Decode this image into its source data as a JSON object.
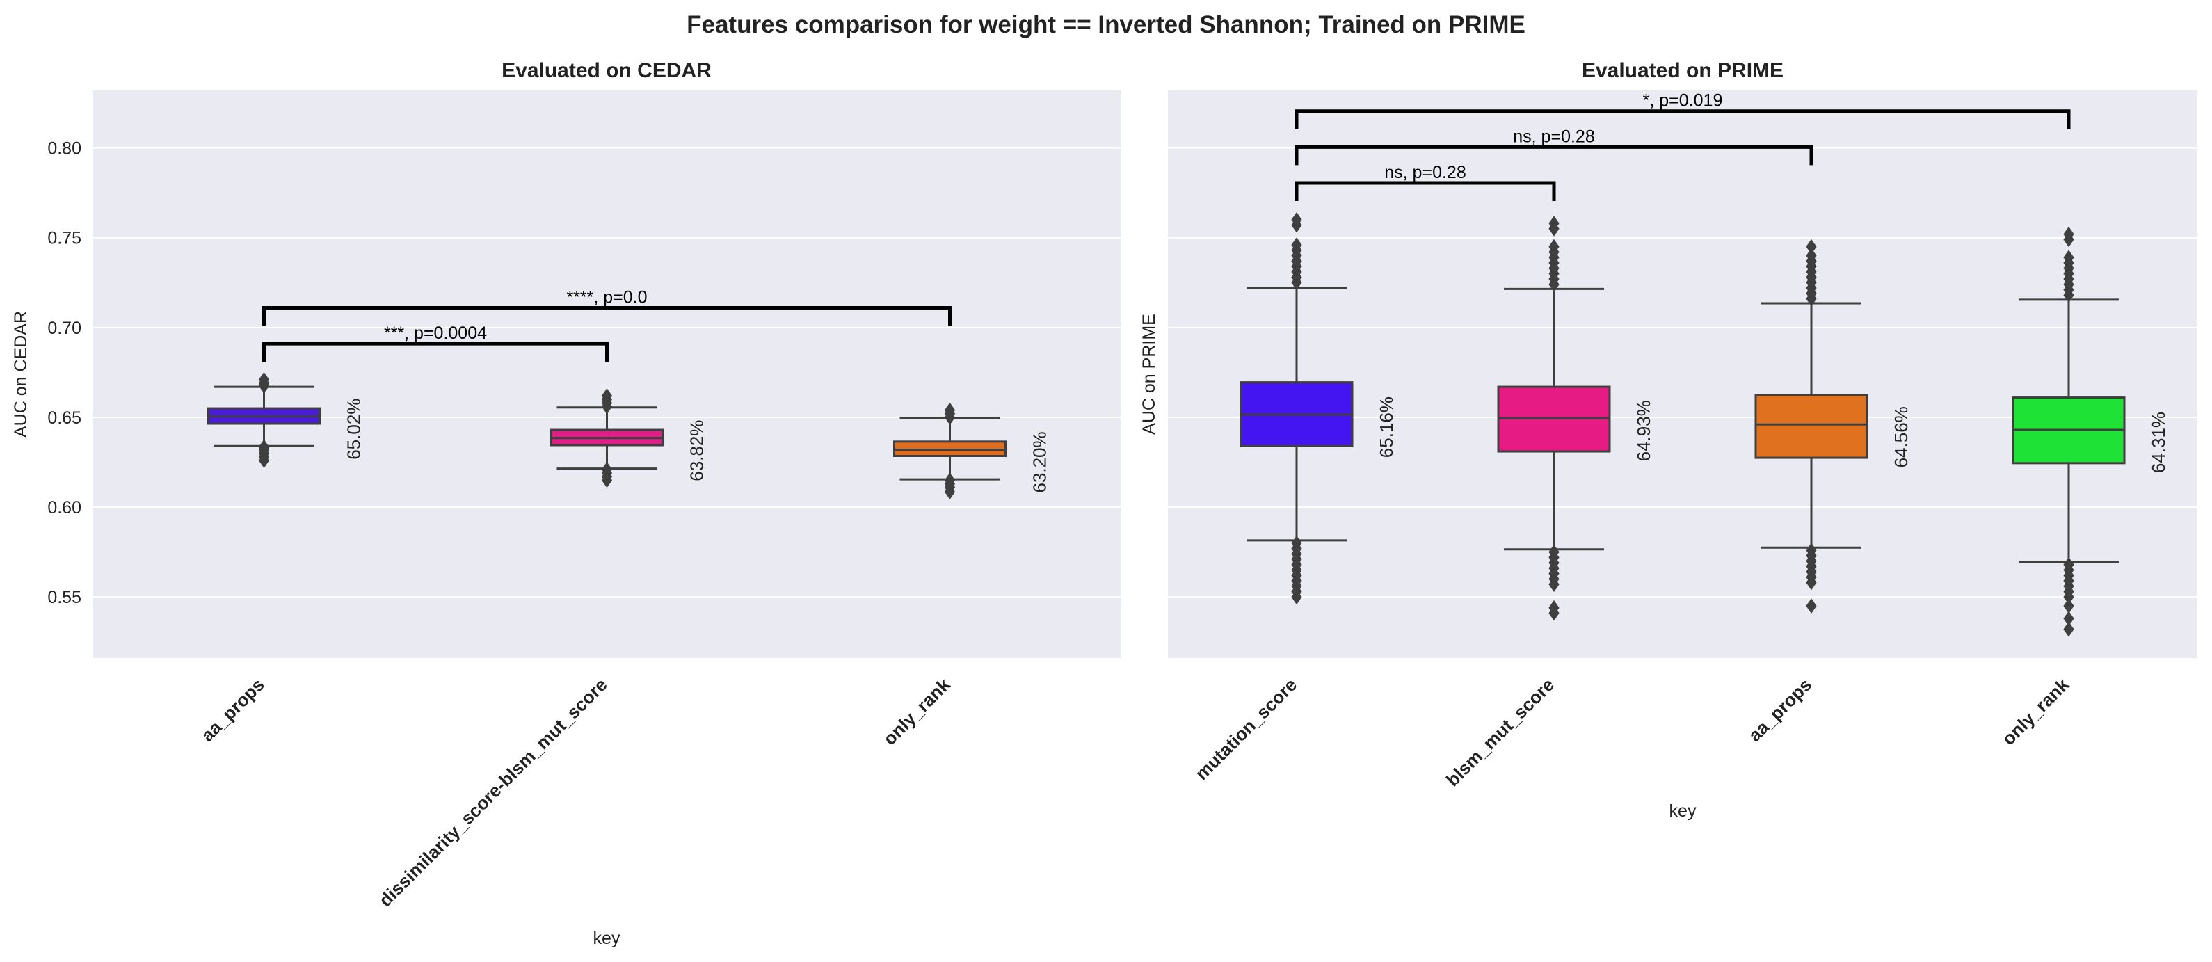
{
  "figure_title": "Features comparison for weight == Inverted Shannon; Trained on PRIME",
  "colors": {
    "panel_bg": "#EAEAF2",
    "grid": "#FFFFFF",
    "box_edge": "#3F3F3F",
    "bracket": "#000000"
  },
  "chart_data": [
    {
      "type": "box",
      "title": "Evaluated on CEDAR",
      "xlabel": "key",
      "ylabel": "AUC on CEDAR",
      "ylim": [
        0.516,
        0.832
      ],
      "yticks": [
        "0.55",
        "0.60",
        "0.65",
        "0.70",
        "0.75",
        "0.80"
      ],
      "grid": true,
      "categories": [
        "aa_props",
        "dissimilarity_score-blsm_mut_score",
        "only_rank"
      ],
      "colors": [
        "#4B1CD6",
        "#DD1F86",
        "#DF6D1E"
      ],
      "boxes": [
        {
          "q1": 0.6465,
          "median": 0.6505,
          "q3": 0.655,
          "whislo": 0.634,
          "whishi": 0.667,
          "fliers_low": [
            0.6335,
            0.632,
            0.63,
            0.628,
            0.626
          ],
          "fliers_high": [
            0.6675,
            0.669,
            0.671
          ],
          "mean_label": "65.02%"
        },
        {
          "q1": 0.6345,
          "median": 0.6385,
          "q3": 0.643,
          "whislo": 0.6215,
          "whishi": 0.6555,
          "fliers_low": [
            0.621,
            0.619,
            0.617,
            0.615
          ],
          "fliers_high": [
            0.656,
            0.658,
            0.66,
            0.662
          ],
          "mean_label": "63.82%"
        },
        {
          "q1": 0.6285,
          "median": 0.632,
          "q3": 0.6365,
          "whislo": 0.6155,
          "whishi": 0.6495,
          "fliers_low": [
            0.615,
            0.613,
            0.611,
            0.6085
          ],
          "fliers_high": [
            0.65,
            0.652,
            0.654
          ],
          "mean_label": "63.20%"
        }
      ],
      "annotations": [
        {
          "from": 0,
          "to": 1,
          "y": 0.691,
          "label": "***, p=0.0004"
        },
        {
          "from": 0,
          "to": 2,
          "y": 0.711,
          "label": "****, p=0.0"
        }
      ]
    },
    {
      "type": "box",
      "title": "Evaluated on PRIME",
      "xlabel": "key",
      "ylabel": "AUC on PRIME",
      "ylim": [
        0.516,
        0.832
      ],
      "yticks": [],
      "grid": true,
      "categories": [
        "mutation_score",
        "blsm_mut_score",
        "aa_props",
        "only_rank"
      ],
      "colors": [
        "#4414F1",
        "#E61C84",
        "#E0721F",
        "#1FE237"
      ],
      "boxes": [
        {
          "q1": 0.634,
          "median": 0.6515,
          "q3": 0.6695,
          "whislo": 0.5815,
          "whishi": 0.722,
          "fliers_low": [
            0.58,
            0.577,
            0.574,
            0.571,
            0.568,
            0.565,
            0.562,
            0.559,
            0.556,
            0.553,
            0.55
          ],
          "fliers_high": [
            0.725,
            0.728,
            0.731,
            0.734,
            0.737,
            0.74,
            0.743,
            0.746,
            0.757,
            0.76
          ],
          "mean_label": "65.16%"
        },
        {
          "q1": 0.631,
          "median": 0.6495,
          "q3": 0.667,
          "whislo": 0.5765,
          "whishi": 0.7215,
          "fliers_low": [
            0.575,
            0.572,
            0.569,
            0.566,
            0.563,
            0.56,
            0.557,
            0.544,
            0.541
          ],
          "fliers_high": [
            0.724,
            0.727,
            0.73,
            0.733,
            0.736,
            0.739,
            0.742,
            0.745,
            0.755,
            0.758
          ],
          "mean_label": "64.93%"
        },
        {
          "q1": 0.6275,
          "median": 0.646,
          "q3": 0.6625,
          "whislo": 0.5775,
          "whishi": 0.7135,
          "fliers_low": [
            0.576,
            0.573,
            0.57,
            0.567,
            0.564,
            0.561,
            0.558,
            0.545
          ],
          "fliers_high": [
            0.716,
            0.719,
            0.722,
            0.725,
            0.728,
            0.731,
            0.734,
            0.737,
            0.74,
            0.745
          ],
          "mean_label": "64.56%"
        },
        {
          "q1": 0.6245,
          "median": 0.643,
          "q3": 0.661,
          "whislo": 0.5695,
          "whishi": 0.7155,
          "fliers_low": [
            0.568,
            0.565,
            0.562,
            0.559,
            0.556,
            0.553,
            0.55,
            0.545,
            0.538,
            0.532
          ],
          "fliers_high": [
            0.718,
            0.721,
            0.724,
            0.727,
            0.73,
            0.733,
            0.736,
            0.739,
            0.749,
            0.752
          ],
          "mean_label": "64.31%"
        }
      ],
      "annotations": [
        {
          "from": 0,
          "to": 1,
          "y": 0.7805,
          "label": "ns, p=0.28"
        },
        {
          "from": 0,
          "to": 2,
          "y": 0.8005,
          "label": "ns, p=0.28"
        },
        {
          "from": 0,
          "to": 3,
          "y": 0.8205,
          "label": "*, p=0.019"
        }
      ]
    }
  ]
}
